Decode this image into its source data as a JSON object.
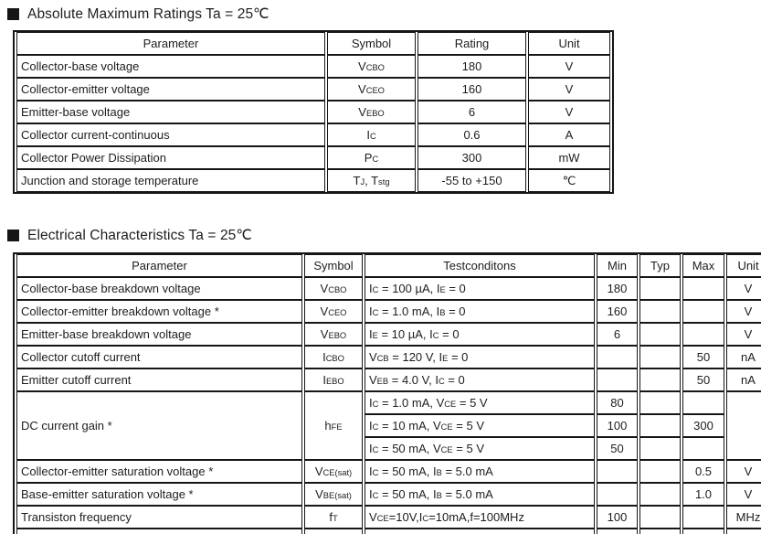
{
  "colors": {
    "background": "#ffffff",
    "text": "#1d1d1d",
    "border": "#161616",
    "bullet": "#151515"
  },
  "icons": {
    "section_bullet_icon": "black-square"
  },
  "amr": {
    "title": "Absolute Maximum Ratings Ta = 25℃",
    "headers": [
      "Parameter",
      "Symbol",
      "Rating",
      "Unit"
    ],
    "rows": [
      {
        "parameter": "Collector-base voltage",
        "symbol": "V~CBO~",
        "rating": "180",
        "unit": "V"
      },
      {
        "parameter": "Collector-emitter voltage",
        "symbol": "V~CEO~",
        "rating": "160",
        "unit": "V"
      },
      {
        "parameter": "Emitter-base voltage",
        "symbol": "V~EBO~",
        "rating": "6",
        "unit": "V"
      },
      {
        "parameter": "Collector current-continuous",
        "symbol": "I~C~",
        "rating": "0.6",
        "unit": "A"
      },
      {
        "parameter": "Collector Power Dissipation",
        "symbol": "P~C~",
        "rating": "300",
        "unit": "mW"
      },
      {
        "parameter": "Junction and storage temperature",
        "symbol": "T~J~, T~stg~",
        "rating": "-55 to +150",
        "unit": "℃"
      }
    ]
  },
  "ec": {
    "title": "Electrical Characteristics Ta = 25℃",
    "headers": [
      "Parameter",
      "Symbol",
      "Testconditons",
      "Min",
      "Typ",
      "Max",
      "Unit"
    ],
    "rows": [
      {
        "parameter": "Collector-base breakdown voltage",
        "symbol": "V~CBO~",
        "cond": "I~C~ = 100 µA, I~E~ = 0",
        "min": "180",
        "typ": "",
        "max": "",
        "unit": "V"
      },
      {
        "parameter": "Collector-emitter breakdown voltage *",
        "symbol": "V~CEO~",
        "cond": "I~C~ = 1.0 mA, I~B~ = 0",
        "min": "160",
        "typ": "",
        "max": "",
        "unit": "V"
      },
      {
        "parameter": "Emitter-base breakdown voltage",
        "symbol": "V~EBO~",
        "cond": "I~E~ = 10 µA, I~C~ = 0",
        "min": "6",
        "typ": "",
        "max": "",
        "unit": "V"
      },
      {
        "parameter": "Collector cutoff current",
        "symbol": "I~CBO~",
        "cond": "V~CB~ = 120 V, I~E~ = 0",
        "min": "",
        "typ": "",
        "max": "50",
        "unit": "nA"
      },
      {
        "parameter": "Emitter cutoff current",
        "symbol": "I~EBO~",
        "cond": "V~EB~ = 4.0 V, I~C~ = 0",
        "min": "",
        "typ": "",
        "max": "50",
        "unit": "nA"
      },
      {
        "parameter": "DC current gain *",
        "symbol": "h~FE~",
        "cond": "I~C~ = 1.0 mA, V~CE~ = 5 V",
        "min": "80",
        "typ": "",
        "max": "",
        "unit": ""
      },
      {
        "cond": "I~C~ = 10 mA, V~CE~ = 5 V",
        "min": "100",
        "typ": "",
        "max": "300"
      },
      {
        "cond": "I~C~ = 50 mA, V~CE~ = 5 V",
        "min": "50",
        "typ": "",
        "max": ""
      },
      {
        "parameter": "Collector-emitter saturation voltage *",
        "symbol": "V~CE(sat)~",
        "cond": "I~C~ = 50 mA, I~B~ = 5.0 mA",
        "min": "",
        "typ": "",
        "max": "0.5",
        "unit": "V"
      },
      {
        "parameter": "Base-emitter saturation voltage *",
        "symbol": "V~BE(sat)~",
        "cond": "I~C~ = 50 mA, I~B~ = 5.0 mA",
        "min": "",
        "typ": "",
        "max": "1.0",
        "unit": "V"
      },
      {
        "parameter": "Transiston frequency",
        "symbol": "f~T~",
        "cond": "V~CE~=10V,I~C~=10mA,f=100MHz",
        "min": "100",
        "typ": "",
        "max": "",
        "unit": "MHz"
      }
    ]
  }
}
